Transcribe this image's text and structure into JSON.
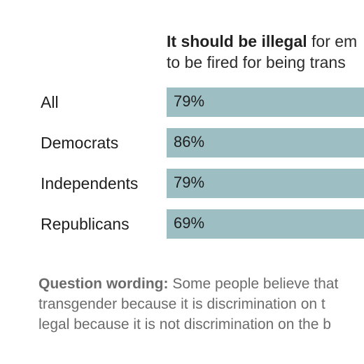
{
  "chart_data": {
    "type": "bar",
    "orientation": "horizontal",
    "header": {
      "bold": "It should be illegal",
      "line1_rest": " for em",
      "line2": "to be fired for being trans"
    },
    "categories": [
      "All",
      "Democrats",
      "Independents",
      "Republicans"
    ],
    "values": [
      79,
      86,
      79,
      69
    ],
    "value_labels": [
      "79%",
      "86%",
      "79%",
      "69%"
    ],
    "bar_color": "#9dbfc4",
    "note": {
      "label": "Question wording:",
      "lines": [
        " Some people believe that",
        "transgender because it is discrimination on t",
        "legal because it is not discrimination on the b"
      ]
    }
  }
}
